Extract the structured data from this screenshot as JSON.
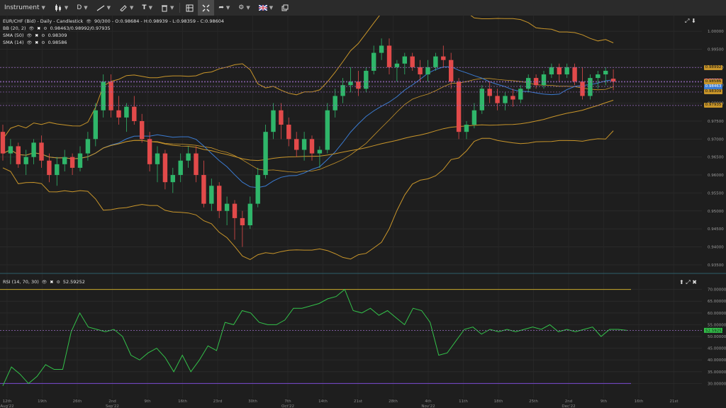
{
  "toolbar": {
    "instrument_label": "Instrument",
    "timeframe_label": "D",
    "items": [
      "line-tool-icon",
      "brush-icon",
      "text-tool-icon",
      "trash-icon",
      "layout-icon",
      "crosshair-icon",
      "share-icon",
      "settings-icon",
      "flag-uk-icon",
      "window-icon"
    ]
  },
  "legend": {
    "symbol_line": "EUR/CHF (Bid) - Daily - Candlestick",
    "ohlc": "90/300 - O:0.98684 - H:0.98939 - L:0.98359 - C:0.98604",
    "bb_label": "BB (20, 2)",
    "bb_values": "0.98463/0.98992/0.97935",
    "sma50_label": "SMA (50)",
    "sma50_value": "0.98309",
    "sma14_label": "SMA (14)",
    "sma14_value": "0.98586"
  },
  "price_axis": {
    "ticks": [
      "1.00000",
      "0.99500",
      "0.99000",
      "0.98500",
      "0.98000",
      "0.97500",
      "0.97000",
      "0.96500",
      "0.96000",
      "0.95500",
      "0.95000",
      "0.94500",
      "0.94000",
      "0.93500"
    ],
    "tags": [
      {
        "text": "0.98992",
        "bg": "#c8952a",
        "fg": "#111"
      },
      {
        "text": "0.98604",
        "bg": "#e24a4a",
        "fg": "#fff"
      },
      {
        "text": "0.98586",
        "bg": "#c8952a",
        "fg": "#111"
      },
      {
        "text": "0.98463",
        "bg": "#3b7bd1",
        "fg": "#fff"
      },
      {
        "text": "0.98309",
        "bg": "#c8952a",
        "fg": "#111"
      },
      {
        "text": "0.97935",
        "bg": "#c8952a",
        "fg": "#111"
      }
    ]
  },
  "rsi": {
    "label": "RSI (14, 70, 30)",
    "value": "52.59252",
    "ticks": [
      "70.00000",
      "65.00000",
      "60.00000",
      "55.00000",
      "50.00000",
      "45.00000",
      "40.00000",
      "35.00000",
      "30.00000"
    ],
    "value_tag": "52.59252",
    "upper": 70,
    "lower": 30,
    "series": [
      29,
      37,
      34,
      30,
      33,
      38,
      36,
      36,
      52,
      60,
      54,
      53,
      52,
      53,
      50,
      42,
      40,
      43,
      45,
      41,
      35,
      42,
      35,
      40,
      46,
      44,
      56,
      55,
      61,
      60,
      56,
      55,
      55,
      57,
      62,
      62,
      63,
      64,
      66,
      67,
      70,
      61,
      60,
      62,
      59,
      61,
      58,
      55,
      62,
      61,
      56,
      42,
      43,
      48,
      53,
      54,
      51,
      53,
      52,
      53,
      52,
      53,
      54,
      53,
      55,
      52,
      53,
      52,
      53,
      54,
      50,
      53,
      53,
      52.59
    ]
  },
  "x_axis": {
    "labels": [
      "12th",
      "19th",
      "26th",
      "2nd",
      "9th",
      "16th",
      "23rd",
      "30th",
      "7th",
      "14th",
      "21st",
      "28th",
      "4th",
      "11th",
      "18th",
      "25th",
      "2nd",
      "9th",
      "16th",
      "21st"
    ],
    "months": [
      {
        "text": "Aug'22",
        "after": 0
      },
      {
        "text": "Sep'22",
        "after": 3
      },
      {
        "text": "Oct'22",
        "after": 8
      },
      {
        "text": "Nov'22",
        "after": 12
      },
      {
        "text": "Dec'22",
        "after": 16
      }
    ]
  },
  "chart_data": {
    "type": "candlestick",
    "ylim": [
      0.933,
      1.002
    ],
    "colors": {
      "up": "#2fb66a",
      "down": "#e24a4a",
      "bb": "#c8952a",
      "sma50": "#c8952a",
      "sma14": "#3b7bd1",
      "rsi": "#33c24a"
    },
    "candles": [
      [
        0.972,
        0.974,
        0.964,
        0.966
      ],
      [
        0.966,
        0.97,
        0.963,
        0.968
      ],
      [
        0.968,
        0.969,
        0.962,
        0.963
      ],
      [
        0.963,
        0.967,
        0.96,
        0.965
      ],
      [
        0.965,
        0.97,
        0.963,
        0.969
      ],
      [
        0.969,
        0.971,
        0.962,
        0.964
      ],
      [
        0.964,
        0.966,
        0.958,
        0.96
      ],
      [
        0.96,
        0.965,
        0.957,
        0.963
      ],
      [
        0.963,
        0.967,
        0.961,
        0.965
      ],
      [
        0.965,
        0.966,
        0.96,
        0.962
      ],
      [
        0.962,
        0.968,
        0.961,
        0.966
      ],
      [
        0.966,
        0.972,
        0.964,
        0.97
      ],
      [
        0.97,
        0.98,
        0.968,
        0.978
      ],
      [
        0.978,
        0.988,
        0.976,
        0.986
      ],
      [
        0.986,
        0.988,
        0.976,
        0.978
      ],
      [
        0.978,
        0.982,
        0.974,
        0.976
      ],
      [
        0.976,
        0.98,
        0.972,
        0.979
      ],
      [
        0.979,
        0.982,
        0.974,
        0.975
      ],
      [
        0.975,
        0.977,
        0.969,
        0.97
      ],
      [
        0.97,
        0.972,
        0.961,
        0.963
      ],
      [
        0.963,
        0.968,
        0.958,
        0.966
      ],
      [
        0.966,
        0.967,
        0.956,
        0.958
      ],
      [
        0.958,
        0.962,
        0.955,
        0.96
      ],
      [
        0.96,
        0.966,
        0.958,
        0.964
      ],
      [
        0.964,
        0.968,
        0.962,
        0.966
      ],
      [
        0.966,
        0.968,
        0.958,
        0.96
      ],
      [
        0.96,
        0.964,
        0.951,
        0.952
      ],
      [
        0.952,
        0.959,
        0.95,
        0.957
      ],
      [
        0.957,
        0.958,
        0.948,
        0.95
      ],
      [
        0.95,
        0.954,
        0.946,
        0.952
      ],
      [
        0.952,
        0.953,
        0.942,
        0.948
      ],
      [
        0.948,
        0.95,
        0.94,
        0.946
      ],
      [
        0.946,
        0.954,
        0.945,
        0.952
      ],
      [
        0.952,
        0.962,
        0.951,
        0.96
      ],
      [
        0.96,
        0.974,
        0.959,
        0.972
      ],
      [
        0.972,
        0.98,
        0.97,
        0.978
      ],
      [
        0.978,
        0.98,
        0.97,
        0.974
      ],
      [
        0.974,
        0.976,
        0.968,
        0.97
      ],
      [
        0.97,
        0.972,
        0.965,
        0.967
      ],
      [
        0.967,
        0.972,
        0.964,
        0.97
      ],
      [
        0.97,
        0.971,
        0.964,
        0.966
      ],
      [
        0.966,
        0.968,
        0.962,
        0.967
      ],
      [
        0.967,
        0.98,
        0.966,
        0.978
      ],
      [
        0.978,
        0.984,
        0.976,
        0.982
      ],
      [
        0.982,
        0.987,
        0.98,
        0.985
      ],
      [
        0.985,
        0.99,
        0.983,
        0.986
      ],
      [
        0.986,
        0.989,
        0.982,
        0.984
      ],
      [
        0.984,
        0.99,
        0.983,
        0.989
      ],
      [
        0.989,
        0.996,
        0.988,
        0.994
      ],
      [
        0.994,
        0.998,
        0.992,
        0.996
      ],
      [
        0.996,
        0.998,
        0.988,
        0.99
      ],
      [
        0.99,
        0.992,
        0.986,
        0.991
      ],
      [
        0.991,
        0.994,
        0.988,
        0.993
      ],
      [
        0.993,
        0.994,
        0.989,
        0.99
      ],
      [
        0.99,
        0.992,
        0.986,
        0.988
      ],
      [
        0.988,
        0.992,
        0.986,
        0.99
      ],
      [
        0.99,
        0.994,
        0.989,
        0.993
      ],
      [
        0.993,
        0.996,
        0.99,
        0.992
      ],
      [
        0.992,
        0.994,
        0.984,
        0.986
      ],
      [
        0.986,
        0.987,
        0.97,
        0.972
      ],
      [
        0.972,
        0.975,
        0.97,
        0.974
      ],
      [
        0.974,
        0.98,
        0.973,
        0.978
      ],
      [
        0.978,
        0.985,
        0.977,
        0.984
      ],
      [
        0.984,
        0.986,
        0.98,
        0.982
      ],
      [
        0.982,
        0.984,
        0.978,
        0.98
      ],
      [
        0.98,
        0.983,
        0.978,
        0.982
      ],
      [
        0.982,
        0.984,
        0.979,
        0.981
      ],
      [
        0.981,
        0.985,
        0.98,
        0.984
      ],
      [
        0.984,
        0.988,
        0.983,
        0.987
      ],
      [
        0.987,
        0.988,
        0.984,
        0.985
      ],
      [
        0.985,
        0.989,
        0.984,
        0.988
      ],
      [
        0.988,
        0.991,
        0.987,
        0.99
      ],
      [
        0.99,
        0.991,
        0.986,
        0.988
      ],
      [
        0.988,
        0.991,
        0.987,
        0.99
      ],
      [
        0.99,
        0.991,
        0.985,
        0.986
      ],
      [
        0.986,
        0.99,
        0.981,
        0.982
      ],
      [
        0.982,
        0.988,
        0.981,
        0.987
      ],
      [
        0.987,
        0.989,
        0.984,
        0.988
      ],
      [
        0.988,
        0.99,
        0.985,
        0.989
      ],
      [
        0.9868,
        0.9894,
        0.9836,
        0.986
      ]
    ]
  }
}
